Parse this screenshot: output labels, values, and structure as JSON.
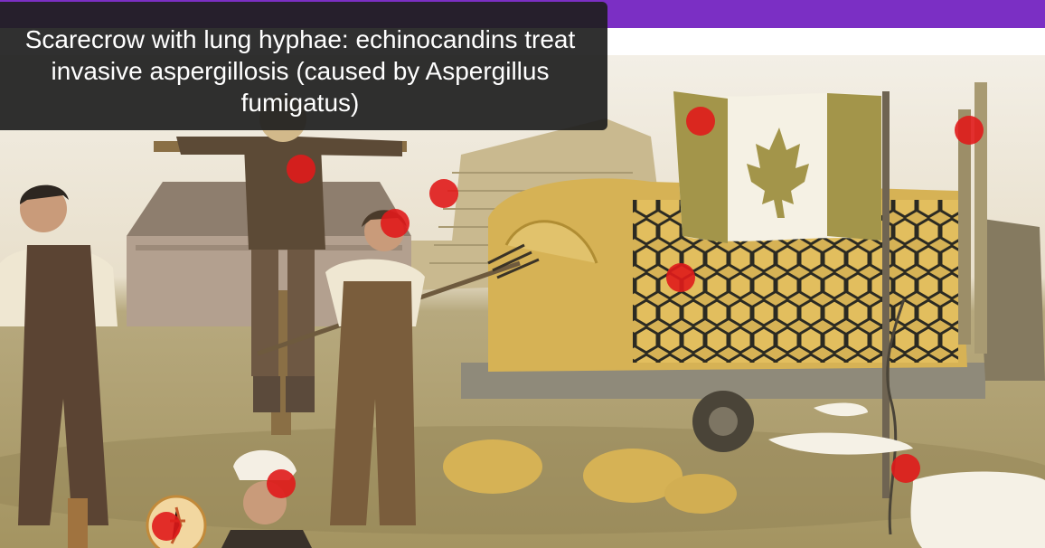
{
  "caption": {
    "text": "Scarecrow with lung hyphae: echinocandins treat invasive aspergillosis (caused by Aspergillus fumigatus)"
  },
  "colors": {
    "topbar": "#7b2fc4",
    "caption_bg": "#1e1e1e",
    "hotspot": "#e01b1b",
    "hay": "#d8b45a",
    "mesh": "#2b2a22"
  },
  "hotspots": [
    {
      "name": "hotspot-canada-flag"
    },
    {
      "name": "hotspot-exhaust-pipe"
    },
    {
      "name": "hotspot-scarecrow-chest"
    },
    {
      "name": "hotspot-brick-wall"
    },
    {
      "name": "hotspot-farmer-head"
    },
    {
      "name": "hotspot-hay-mesh"
    },
    {
      "name": "hotspot-sapling"
    },
    {
      "name": "hotspot-turban-man"
    },
    {
      "name": "hotspot-orb"
    }
  ]
}
